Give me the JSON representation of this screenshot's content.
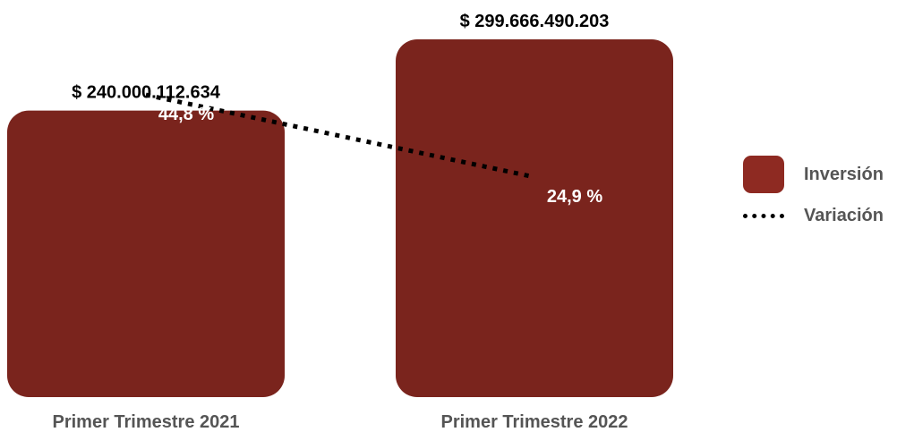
{
  "chart_data": {
    "type": "bar",
    "categories": [
      "Primer Trimestre 2021",
      "Primer Trimestre 2022"
    ],
    "series": [
      {
        "name": "Inversión",
        "values": [
          240000112634,
          299666490203
        ],
        "value_labels": [
          "$ 240.000.112.634",
          "$ 299.666.490.203"
        ]
      },
      {
        "name": "Variación",
        "values": [
          44.8,
          24.9
        ],
        "value_labels": [
          "44,8 %",
          "24,9 %"
        ]
      }
    ],
    "legend_position": "right",
    "grid": false
  },
  "colors": {
    "bar": "#7a241d",
    "legend_swatch": "#8e2a22",
    "line": "#000000"
  }
}
